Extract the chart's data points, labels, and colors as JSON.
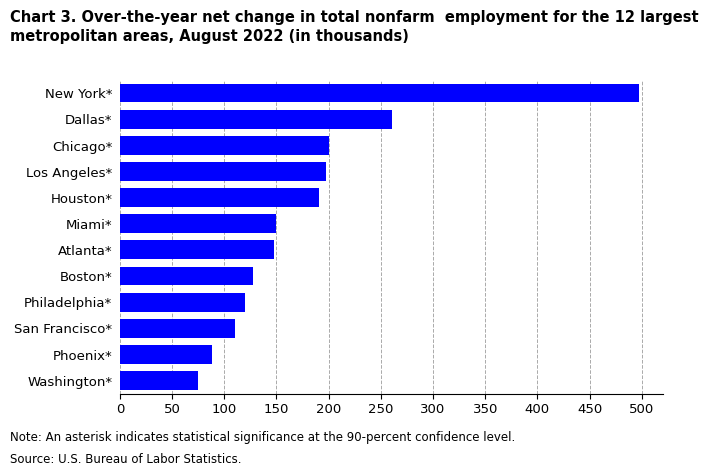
{
  "title_line1": "Chart 3. Over-the-year net change in total nonfarm  employment for the 12 largest",
  "title_line2": "metropolitan areas, August 2022 (in thousands)",
  "categories": [
    "Washington*",
    "Phoenix*",
    "San Francisco*",
    "Philadelphia*",
    "Boston*",
    "Atlanta*",
    "Miami*",
    "Houston*",
    "Los Angeles*",
    "Chicago*",
    "Dallas*",
    "New York*"
  ],
  "values": [
    75,
    88,
    110,
    120,
    128,
    148,
    150,
    191,
    197,
    200,
    261,
    497
  ],
  "bar_color": "#0000FF",
  "background_color": "#FFFFFF",
  "xlim": [
    0,
    520
  ],
  "xticks": [
    0,
    50,
    100,
    150,
    200,
    250,
    300,
    350,
    400,
    450,
    500
  ],
  "note": "Note: An asterisk indicates statistical significance at the 90-percent confidence level.",
  "source": "Source: U.S. Bureau of Labor Statistics.",
  "title_fontsize": 10.5,
  "label_fontsize": 9.5,
  "tick_fontsize": 9.5,
  "note_fontsize": 8.5
}
